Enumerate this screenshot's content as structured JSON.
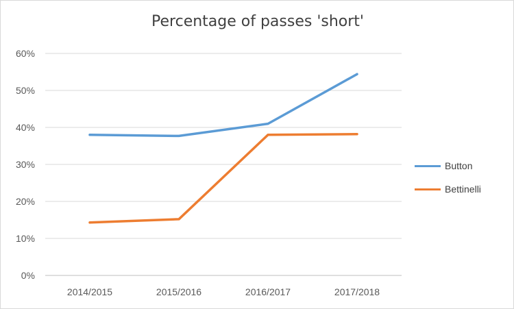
{
  "chart_data": {
    "type": "line",
    "title": "Percentage of passes 'short'",
    "xlabel": "",
    "ylabel": "",
    "categories": [
      "2014/2015",
      "2015/2016",
      "2016/2017",
      "2017/2018"
    ],
    "y_ticks": [
      "0%",
      "10%",
      "20%",
      "30%",
      "40%",
      "50%",
      "60%"
    ],
    "ylim": [
      0,
      60
    ],
    "y_unit": "%",
    "grid": true,
    "legend_position": "right",
    "series": [
      {
        "name": "Button",
        "color": "#5b9bd5",
        "values": [
          38.0,
          37.7,
          41.0,
          54.4
        ]
      },
      {
        "name": "Bettinelli",
        "color": "#ed7d31",
        "values": [
          14.3,
          15.2,
          38.0,
          38.2
        ]
      }
    ]
  }
}
